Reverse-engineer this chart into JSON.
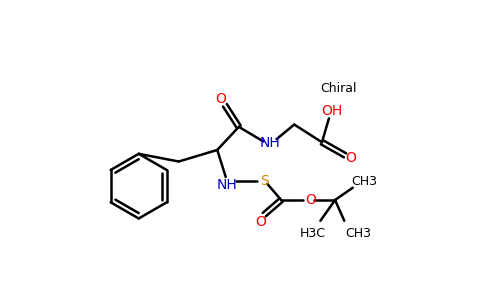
{
  "background_color": "#ffffff",
  "bond_color": "#000000",
  "oxygen_color": "#ff0000",
  "nitrogen_color": "#0000cc",
  "sulfur_color": "#cc8800",
  "line_width": 1.8,
  "fig_width": 4.84,
  "fig_height": 3.0,
  "dpi": 100,
  "chiral_label": "Chiral",
  "oh_label": "OH",
  "nh_label": "NH",
  "s_label": "S",
  "o_label": "O",
  "ch3_label": "CH3",
  "h3c_label": "H3C"
}
